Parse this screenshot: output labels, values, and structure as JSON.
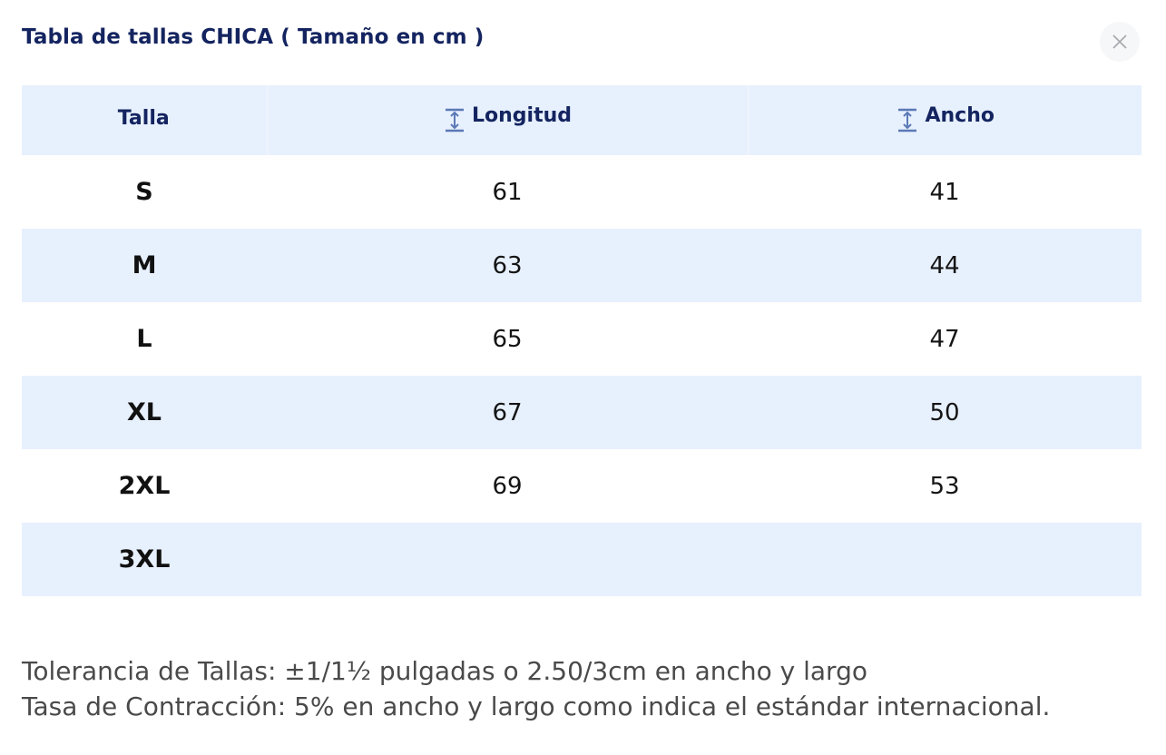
{
  "dialog": {
    "title": "Tabla de tallas CHICA ( Tamaño en cm )",
    "close_icon": "close-icon"
  },
  "table": {
    "headers": {
      "size": "Talla",
      "length": "Longitud",
      "width": "Ancho",
      "measure_icon": "vertical-measure-icon"
    },
    "rows": [
      {
        "size": "S",
        "length": "61",
        "width": "41"
      },
      {
        "size": "M",
        "length": "63",
        "width": "44"
      },
      {
        "size": "L",
        "length": "65",
        "width": "47"
      },
      {
        "size": "XL",
        "length": "67",
        "width": "50"
      },
      {
        "size": "2XL",
        "length": "69",
        "width": "53"
      },
      {
        "size": "3XL",
        "length": "",
        "width": ""
      }
    ]
  },
  "notes": {
    "tolerance": "Tolerancia de Tallas: ±1/1½ pulgadas o 2.50/3cm en ancho y largo",
    "shrinkage": "Tasa de Contracción: 5% en ancho y largo como indica el estándar internacional."
  },
  "colors": {
    "title": "#142460",
    "row_shade": "#e7f0fd",
    "icon": "#5b78b6"
  }
}
